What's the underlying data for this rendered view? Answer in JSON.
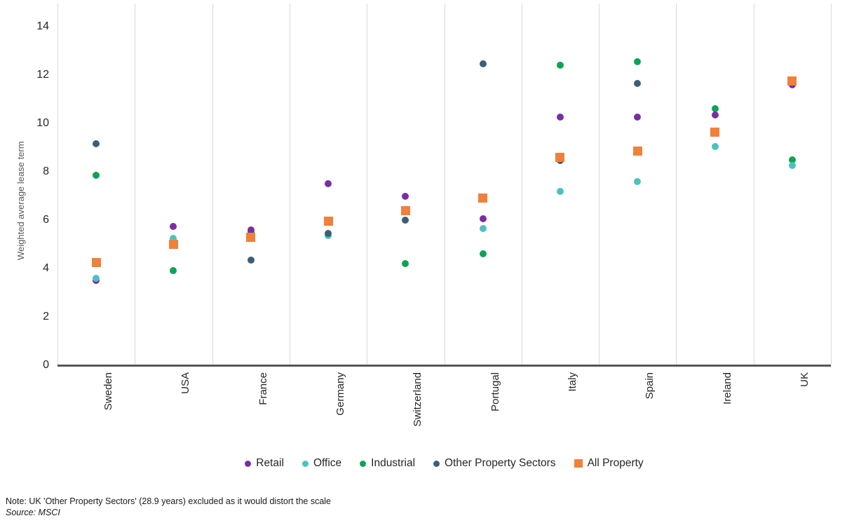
{
  "chart_data": {
    "type": "scatter",
    "title": "",
    "xlabel": "",
    "ylabel": "Weighted average lease term",
    "ylim": [
      0,
      15
    ],
    "y_ticks": [
      0,
      2,
      4,
      6,
      8,
      10,
      12,
      14
    ],
    "grid": "vertical-only",
    "legend_position": "bottom",
    "categories": [
      "Sweden",
      "USA",
      "France",
      "Germany",
      "Switzerland",
      "Portugal",
      "Italy",
      "Spain",
      "Ireland",
      "UK"
    ],
    "series": [
      {
        "name": "Retail",
        "marker": "circle",
        "color": "#7a2ea3",
        "z": 2,
        "values": [
          3.5,
          5.75,
          5.6,
          7.5,
          7.0,
          6.05,
          10.25,
          10.25,
          10.35,
          11.6
        ]
      },
      {
        "name": "Office",
        "marker": "circle",
        "color": "#4bc2bf",
        "z": 3,
        "values": [
          3.6,
          5.25,
          null,
          5.35,
          null,
          5.65,
          7.2,
          7.6,
          9.05,
          8.25
        ]
      },
      {
        "name": "Industrial",
        "marker": "circle",
        "color": "#0da453",
        "z": 1,
        "values": [
          7.85,
          3.9,
          5.5,
          null,
          4.2,
          4.6,
          12.4,
          12.55,
          10.6,
          8.5
        ]
      },
      {
        "name": "Other Property Sectors",
        "marker": "circle",
        "color": "#3c5f76",
        "z": 4,
        "values": [
          9.15,
          null,
          4.35,
          5.45,
          6.0,
          12.45,
          8.45,
          11.65,
          null,
          null
        ]
      },
      {
        "name": "All Property",
        "marker": "square",
        "color": "#ef813b",
        "z": 5,
        "values": [
          4.25,
          5.0,
          5.3,
          5.95,
          6.4,
          6.9,
          8.6,
          8.85,
          9.65,
          11.75
        ]
      }
    ]
  },
  "notes": {
    "note": "Note: UK 'Other Property Sectors' (28.9 years) excluded as it would distort the scale",
    "source": "Source: MSCI"
  }
}
